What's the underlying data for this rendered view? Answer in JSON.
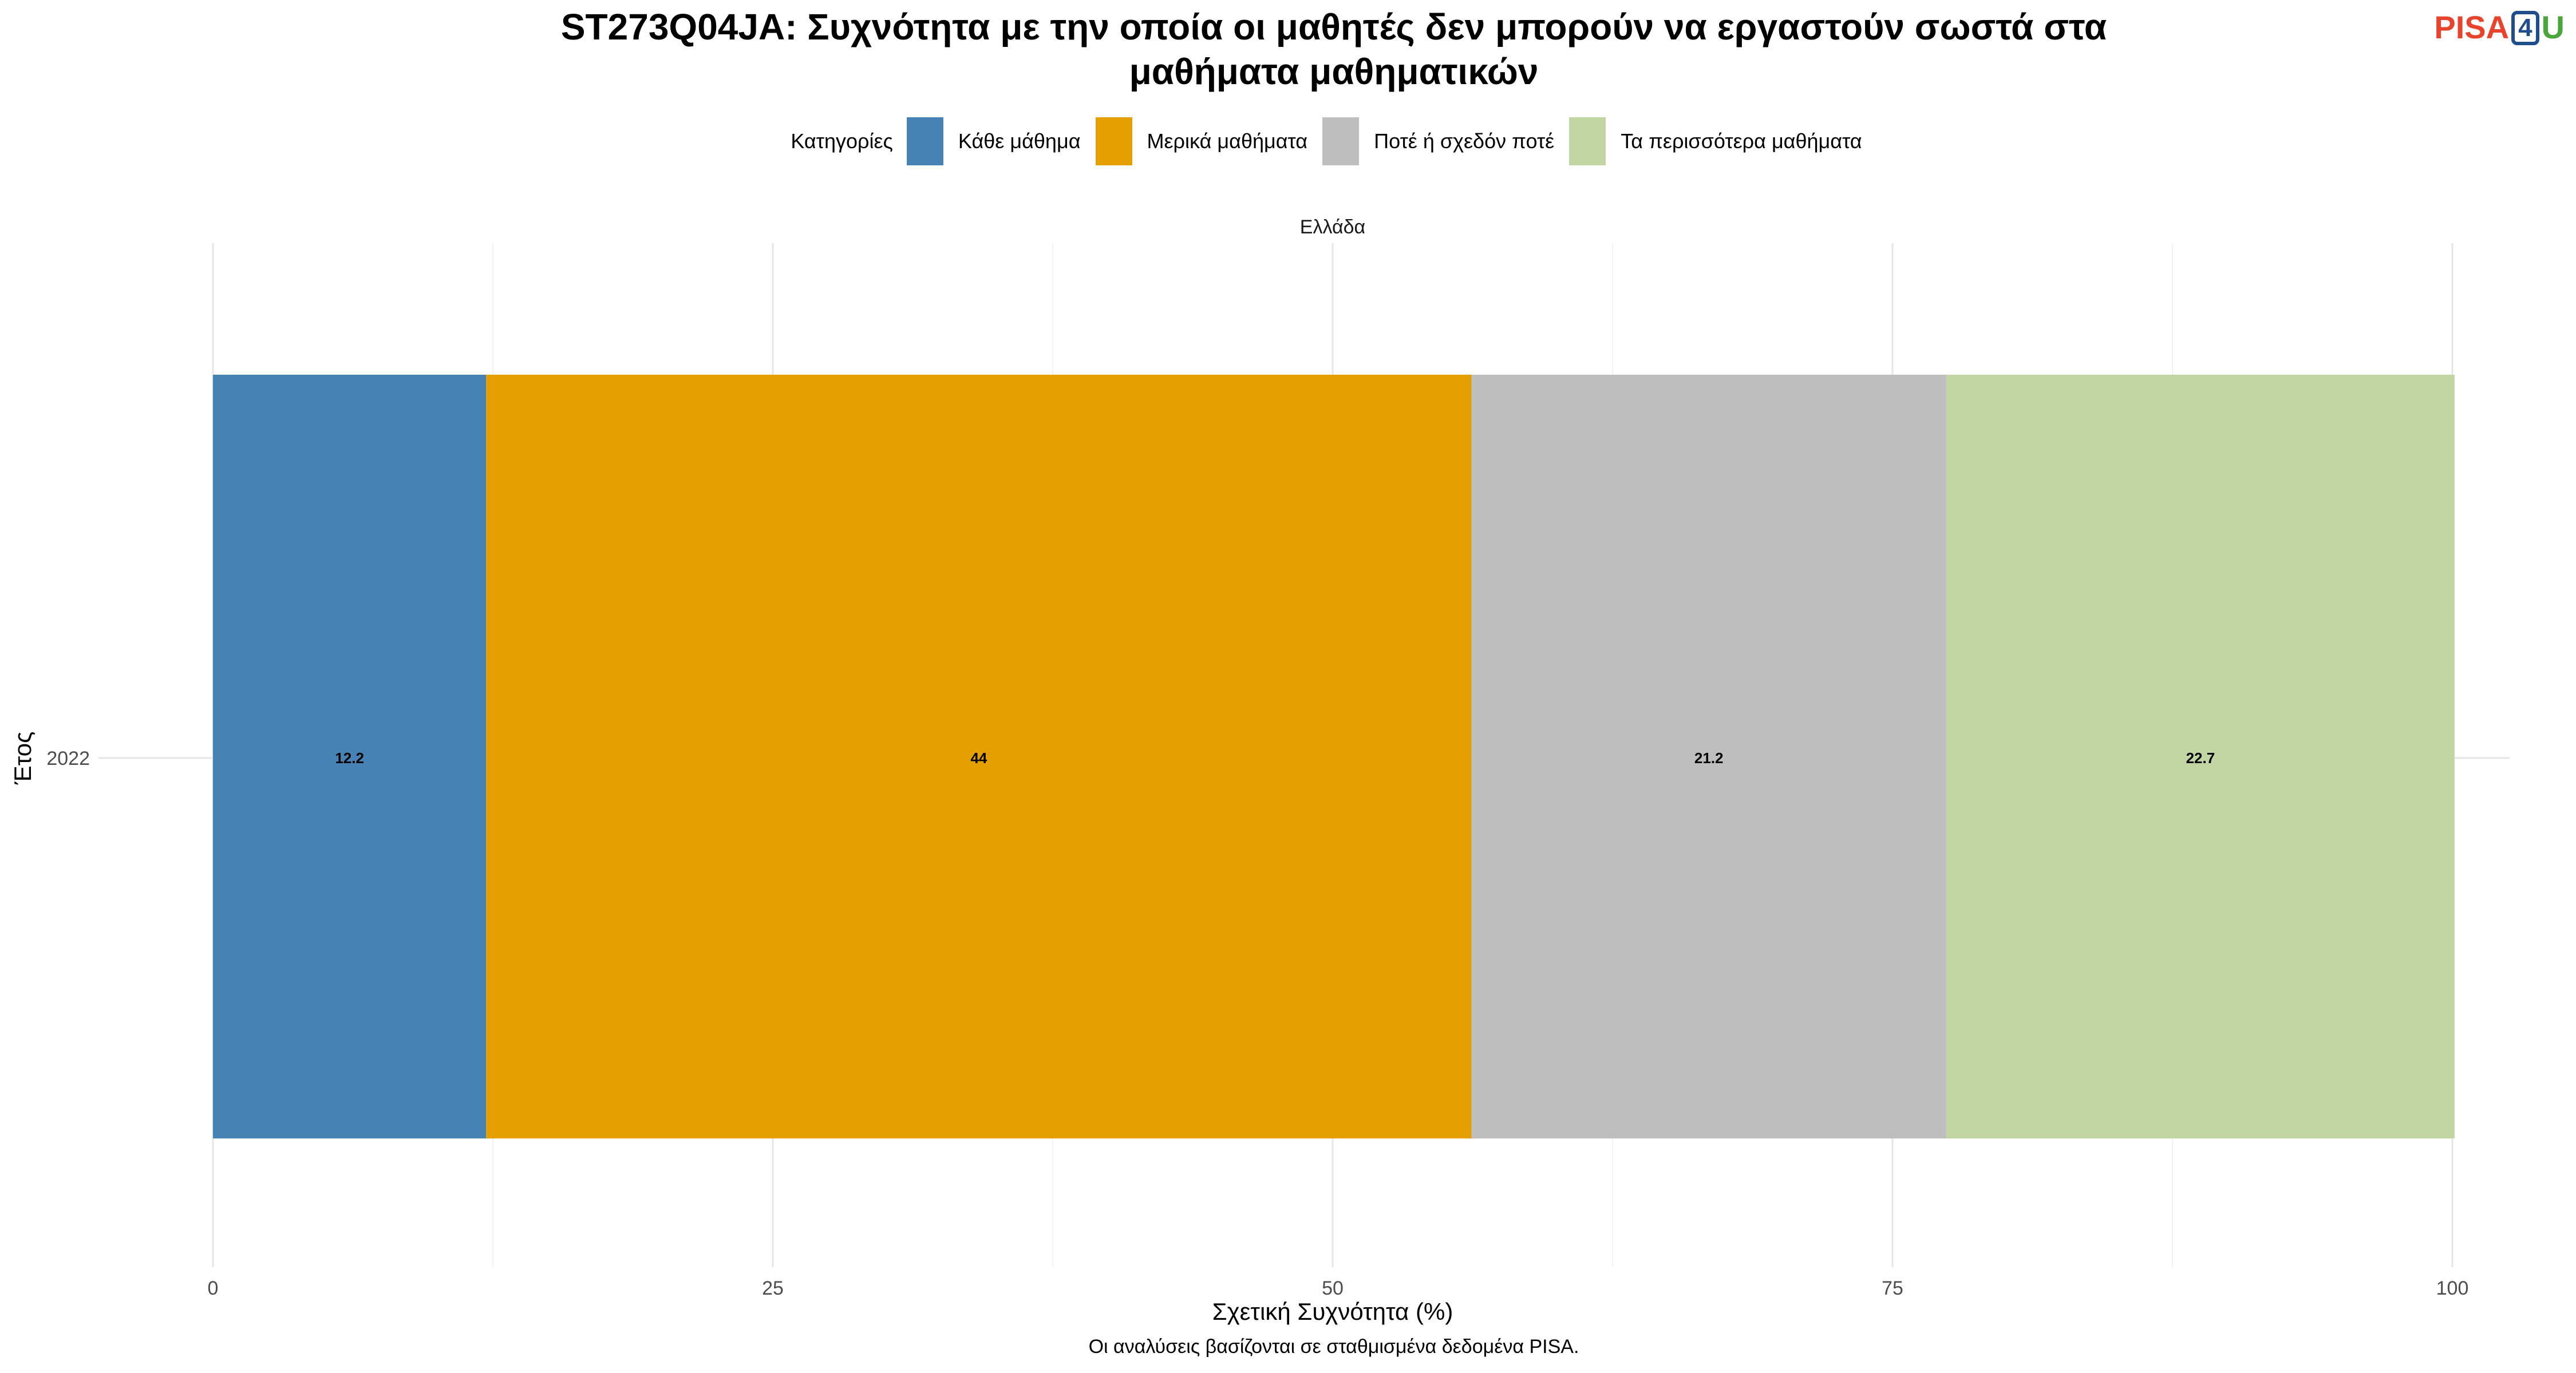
{
  "title": {
    "line1": "ST273Q04JA: Συχνότητα με την οποία οι μαθητές δεν μπορούν να εργαστούν σωστά στα",
    "line2": "μαθήματα μαθηματικών"
  },
  "logo": {
    "pisa": "PISA",
    "four": "4",
    "u": "U"
  },
  "legend": {
    "title": "Κατηγορίες",
    "items": [
      {
        "label": "Κάθε μάθημα",
        "color": "#4682b4"
      },
      {
        "label": "Μερικά μαθήματα",
        "color": "#e5a000"
      },
      {
        "label": "Ποτέ ή σχεδόν ποτέ",
        "color": "#bebebe"
      },
      {
        "label": "Τα περισσότερα μαθήματα",
        "color": "#c2d6a4"
      }
    ]
  },
  "caption": "Οι αναλύσεις βασίζονται σε σταθμισμένα δεδομένα PISA.",
  "chart_data": {
    "type": "bar",
    "orientation": "horizontal",
    "stacked": true,
    "facet": "Ελλάδα",
    "categories": [
      "2022"
    ],
    "series": [
      {
        "name": "Κάθε μάθημα",
        "values": [
          12.2
        ],
        "color": "#4682b4"
      },
      {
        "name": "Μερικά μαθήματα",
        "values": [
          44
        ],
        "color": "#e5a000"
      },
      {
        "name": "Ποτέ ή σχεδόν ποτέ",
        "values": [
          21.2
        ],
        "color": "#bebebe"
      },
      {
        "name": "Τα περισσότερα μαθήματα",
        "values": [
          22.7
        ],
        "color": "#c2d6a4"
      }
    ],
    "xlabel": "Σχετική Συχνότητα (%)",
    "ylabel": "Έτος",
    "xlim": [
      0,
      100
    ],
    "xticks": [
      0,
      25,
      50,
      75,
      100
    ],
    "xtick_labels": [
      "0",
      "25",
      "50",
      "75",
      "100"
    ],
    "grid": true,
    "legend_position": "top"
  }
}
